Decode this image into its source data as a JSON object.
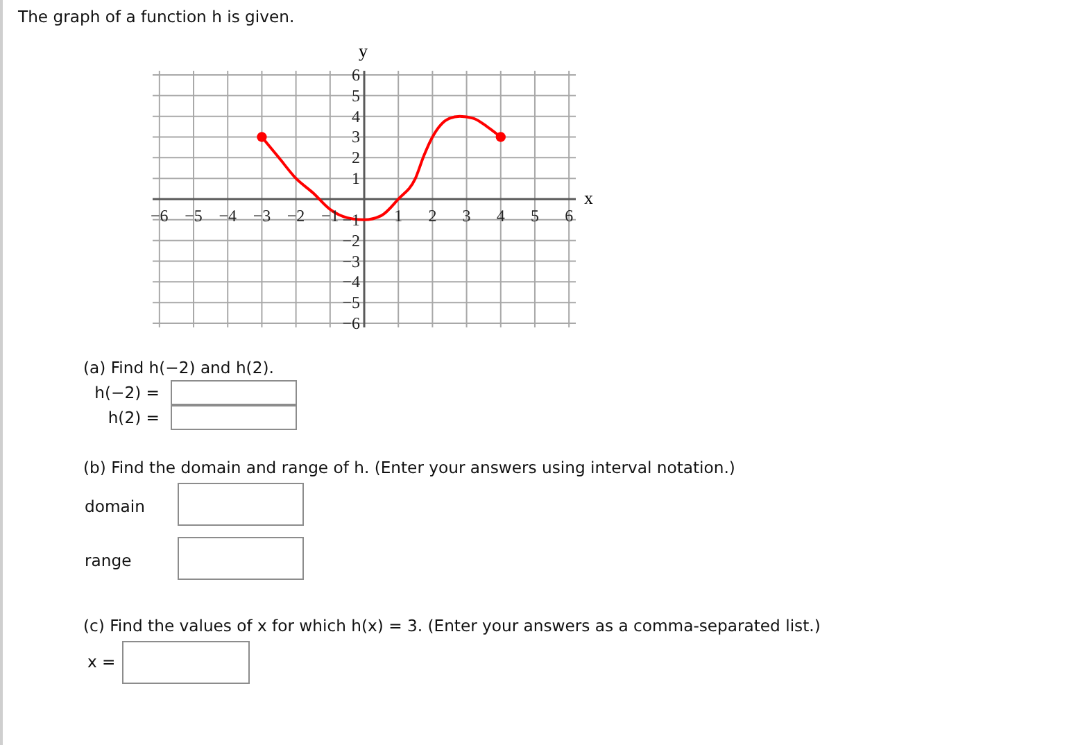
{
  "chart_data": {
    "type": "line",
    "title": "The graph of a function h is given.",
    "xlabel": "x",
    "ylabel": "y",
    "xlim": [
      -6.2,
      6.2
    ],
    "ylim": [
      -6.2,
      6.2
    ],
    "xticks": [
      {
        "value": -6,
        "label": "−6"
      },
      {
        "value": -5,
        "label": "−5"
      },
      {
        "value": -4,
        "label": "−4"
      },
      {
        "value": -3,
        "label": "−3"
      },
      {
        "value": -2,
        "label": "−2"
      },
      {
        "value": -1,
        "label": "−1"
      },
      1,
      2,
      3,
      4,
      5,
      6
    ],
    "yticks": [
      {
        "value": -6,
        "label": "−6"
      },
      {
        "value": -5,
        "label": "−5"
      },
      {
        "value": -4,
        "label": "−4"
      },
      {
        "value": -3,
        "label": "−3"
      },
      {
        "value": -2,
        "label": "−2"
      },
      {
        "value": -1,
        "label": "−1"
      },
      1,
      2,
      3,
      4,
      5,
      6
    ],
    "grid": true,
    "series": [
      {
        "color": "#ff0000",
        "marker": "none",
        "x": [
          -3,
          -2.5,
          -2,
          -1.5,
          -1,
          -0.5,
          0,
          0.5,
          1,
          1.5,
          1.75,
          2,
          2.25,
          2.5,
          2.8,
          3.2,
          3.6,
          4
        ],
        "values": [
          3,
          2,
          1,
          0.3,
          -0.5,
          -0.9,
          -1,
          -0.8,
          0,
          1,
          2.1,
          3,
          3.6,
          3.9,
          4,
          3.9,
          3.5,
          3
        ]
      },
      {
        "type": "scatter",
        "color": "#ff0000",
        "marker": "circle",
        "x": [
          -3,
          4
        ],
        "values": [
          3,
          3
        ]
      }
    ],
    "annotations": [
      "(a) Find h(−2) and h(2).",
      "h(−2) =",
      "h(2) =",
      "(b) Find the domain and range of h. (Enter your answers using interval notation.)",
      "domain",
      "range",
      "(c) Find the values of x for which h(x) = 3. (Enter your answers as a comma-separated list.)",
      "x ="
    ]
  }
}
